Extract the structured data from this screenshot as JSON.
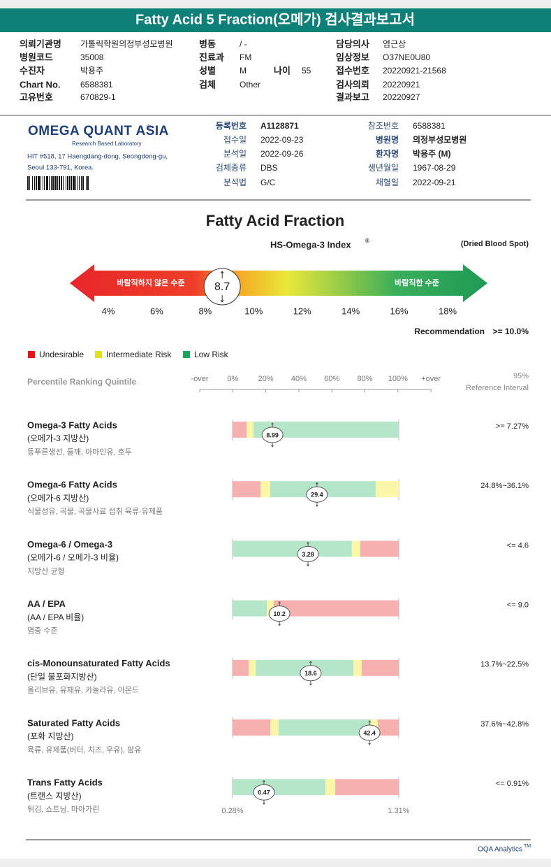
{
  "header": {
    "title": "Fatty Acid 5 Fraction(오메가) 검사결과보고서"
  },
  "info": {
    "left": [
      {
        "label": "의뢰기관명",
        "value": "가톨릭학원의정부성모병원"
      },
      {
        "label": "병원코드",
        "value": "35008"
      },
      {
        "label": "수진자",
        "value": "박용주"
      },
      {
        "label": "Chart No.",
        "value": "6588381"
      },
      {
        "label": "고유번호",
        "value": "670829-1"
      }
    ],
    "middle": [
      {
        "label": "병동",
        "value": "/ -"
      },
      {
        "label": "진료과",
        "value": "FM"
      },
      {
        "label": "성별",
        "value": "M"
      },
      {
        "label": "검체",
        "value": "Other"
      }
    ],
    "age": {
      "label": "나이",
      "value": "55"
    },
    "right": [
      {
        "label": "담당의사",
        "value": "염근상"
      },
      {
        "label": "임상정보",
        "value": "O37NE0U80"
      },
      {
        "label": "접수번호",
        "value": "20220921-21568"
      },
      {
        "label": "검사의뢰",
        "value": "20220921"
      },
      {
        "label": "결과보고",
        "value": "20220927"
      }
    ]
  },
  "lab": {
    "name": "OMEGA QUANT ASIA",
    "mark": "®",
    "tagline": "Research Based Laboratory",
    "address": [
      "HIT #518, 17 Haengdang-dong, Seongdong-gu,",
      "Seoul 133-791, Korea."
    ],
    "fields_middle": [
      {
        "label": "등록번호",
        "value": "A1128871"
      },
      {
        "label": "접수일",
        "value": "2022-09-23"
      },
      {
        "label": "분석일",
        "value": "2022-09-26"
      },
      {
        "label": "검체종류",
        "value": "DBS"
      },
      {
        "label": "분석법",
        "value": "G/C"
      }
    ],
    "fields_right": [
      {
        "label": "참조번호",
        "value": "6588381"
      },
      {
        "label": "병원명",
        "value": "의정부성모병원"
      },
      {
        "label": "환자명",
        "value": "박용주 (M)"
      },
      {
        "label": "생년월일",
        "value": "1967-08-29"
      },
      {
        "label": "채혈일",
        "value": "2022-09-21"
      }
    ]
  },
  "section": {
    "title": "Fatty Acid Fraction",
    "subtitle": "HS-Omega-3 Index",
    "subtitle_mark": "®",
    "specimen": "(Dried Blood Spot)"
  },
  "gauge": {
    "low_label": "바람직하지 않은 수준",
    "high_label": "바람직한 수준",
    "value": 8.7,
    "ticks": [
      {
        "value": 4,
        "label": "4%"
      },
      {
        "value": 6,
        "label": "6%"
      },
      {
        "value": 8,
        "label": "8%"
      },
      {
        "value": 10,
        "label": "10%"
      },
      {
        "value": 12,
        "label": "12%"
      },
      {
        "value": 14,
        "label": "14%"
      },
      {
        "value": 16,
        "label": "16%"
      },
      {
        "value": 18,
        "label": "18%"
      }
    ],
    "recommendation": {
      "label": "Recommendation",
      "value": ">= 10.0%"
    }
  },
  "legend": [
    {
      "name": "Undesirable",
      "color": "#e8141b"
    },
    {
      "name": "Intermediate Risk",
      "color": "#e2e21a"
    },
    {
      "name": "Low Risk",
      "color": "#18a85a"
    }
  ],
  "ranking": {
    "title": "Percentile Ranking Quintile",
    "axis": [
      "-over",
      "0%",
      "20%",
      "40%",
      "60%",
      "80%",
      "100%",
      "+over"
    ],
    "ref_header": [
      "95%",
      "Reference Interval"
    ],
    "colors": {
      "red": "#f7b0b0",
      "yellow": "#fbf7a8",
      "green": "#b5e6c9"
    },
    "rows": [
      {
        "name": "Omega-3 Fatty Acids",
        "korean": "(오메가-3 지방산)",
        "foods": "등푸른생선, 들깨, 아마인유, 호두",
        "value": 8.99,
        "percentile": 24,
        "reference": ">= 7.27%",
        "segments": [
          {
            "color": "red",
            "to": 8.4
          },
          {
            "color": "yellow",
            "to": 12.6
          },
          {
            "color": "green",
            "to": 100
          }
        ]
      },
      {
        "name": "Omega-6 Fatty Acids",
        "korean": "(오메가-6 지방산)",
        "foods": "식물성유, 곡물, 곡물사료 섭취 육류·유제품",
        "value": 29.4,
        "percentile": 50.8,
        "reference": "24.8%~36.1%",
        "segments": [
          {
            "color": "red",
            "to": 16.8
          },
          {
            "color": "yellow",
            "to": 22.7
          },
          {
            "color": "green",
            "to": 86.1
          },
          {
            "color": "yellow",
            "to": 100
          }
        ]
      },
      {
        "name": "Omega-6 / Omega-3",
        "korean": "(오메가-6 / 오메가-3 비율)",
        "foods": "지방산 균형",
        "value": 3.28,
        "percentile": 45.4,
        "reference": "<= 4.6",
        "segments": [
          {
            "color": "green",
            "to": 71.8
          },
          {
            "color": "yellow",
            "to": 76.9
          },
          {
            "color": "red",
            "to": 100
          }
        ]
      },
      {
        "name": "AA / EPA",
        "korean": "(AA / EPA 비율)",
        "foods": "염증 수준",
        "value": 10.2,
        "percentile": 28.2,
        "reference": "<= 9.0",
        "segments": [
          {
            "color": "green",
            "to": 20.6
          },
          {
            "color": "yellow",
            "to": 24.8
          },
          {
            "color": "red",
            "to": 100
          }
        ]
      },
      {
        "name": "cis-Monounsaturated Fatty Acids",
        "korean": "(단일 불포화지방산)",
        "foods": "올리브유, 유채유, 카놀라유, 아몬드",
        "value": 18.6,
        "percentile": 47,
        "reference": "13.7%~22.5%",
        "segments": [
          {
            "color": "red",
            "to": 9.7
          },
          {
            "color": "yellow",
            "to": 13.9
          },
          {
            "color": "green",
            "to": 72.7
          },
          {
            "color": "yellow",
            "to": 77.7
          },
          {
            "color": "red",
            "to": 100
          }
        ]
      },
      {
        "name": "Saturated Fatty Acids",
        "korean": "(포화 지방산)",
        "foods": "육류, 유제품(버터, 치즈, 우유), 팜유",
        "value": 42.4,
        "percentile": 82.4,
        "reference": "37.6%~42.8%",
        "segments": [
          {
            "color": "red",
            "to": 22.7
          },
          {
            "color": "yellow",
            "to": 27.7
          },
          {
            "color": "green",
            "to": 83.2
          },
          {
            "color": "yellow",
            "to": 87.4
          },
          {
            "color": "red",
            "to": 100
          }
        ]
      },
      {
        "name": "Trans Fatty Acids",
        "korean": "(트랜스 지방산)",
        "foods": "튀김, 쇼트닝, 마아가린",
        "value": 0.47,
        "percentile": 18.9,
        "reference": "<= 0.91%",
        "segments": [
          {
            "color": "green",
            "to": 55.9
          },
          {
            "color": "yellow",
            "to": 61.8
          },
          {
            "color": "red",
            "to": 100
          }
        ],
        "scale_labels": [
          "0.28%",
          "1.31%"
        ]
      }
    ]
  },
  "footer": {
    "brand": "OQA Analytics",
    "mark": "TM"
  }
}
